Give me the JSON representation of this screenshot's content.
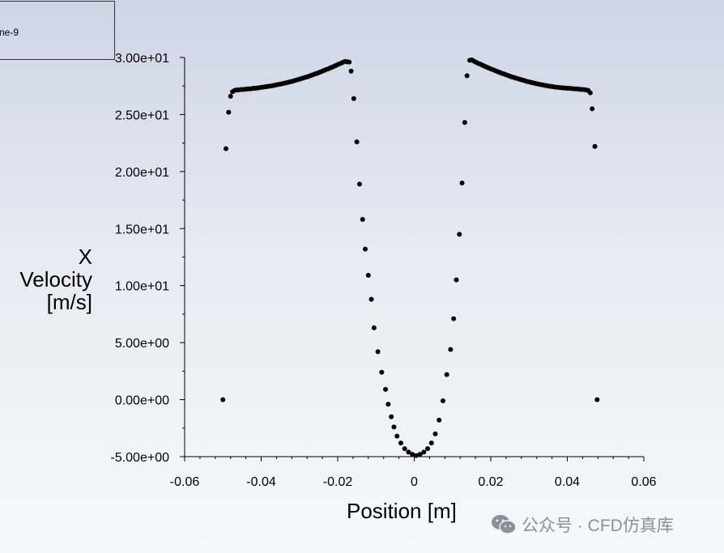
{
  "legend": {
    "text": "ne-9"
  },
  "watermark": {
    "text": "公众号 · CFD仿真库",
    "icon": "wechat-icon",
    "color": "#8a8f99"
  },
  "chart_data": {
    "type": "scatter",
    "title": "",
    "xlabel": "Position [m]",
    "ylabel_lines": [
      "X",
      "Velocity",
      "[m/s]"
    ],
    "xlim": [
      -0.06,
      0.06
    ],
    "ylim": [
      -5,
      30
    ],
    "x_ticks": [
      -0.06,
      -0.04,
      -0.02,
      0,
      0.02,
      0.04,
      0.06
    ],
    "x_tick_labels": [
      "-0.06",
      "-0.04",
      "-0.02",
      "0",
      "0.02",
      "0.04",
      "0.06"
    ],
    "y_ticks": [
      -5,
      0,
      5,
      10,
      15,
      20,
      25,
      30
    ],
    "y_tick_labels": [
      "-5.00e+00",
      "0.00e+00",
      "5.00e+00",
      "1.00e+01",
      "1.50e+01",
      "2.00e+01",
      "2.50e+01",
      "3.00e+01"
    ],
    "grid": false,
    "marker_color": "#000000",
    "series": [
      {
        "points": [
          [
            -0.05,
            0.0
          ],
          [
            -0.0492,
            22.0
          ],
          [
            -0.0485,
            25.2
          ],
          [
            -0.048,
            26.6
          ],
          [
            -0.0475,
            27.0
          ],
          [
            -0.047,
            27.1
          ],
          [
            -0.0465,
            27.15
          ],
          [
            -0.046,
            27.15
          ],
          [
            -0.0455,
            27.18
          ],
          [
            -0.045,
            27.2
          ],
          [
            -0.0445,
            27.2
          ],
          [
            -0.044,
            27.22
          ],
          [
            -0.0435,
            27.25
          ],
          [
            -0.043,
            27.25
          ],
          [
            -0.0425,
            27.27
          ],
          [
            -0.042,
            27.3
          ],
          [
            -0.0415,
            27.3
          ],
          [
            -0.041,
            27.33
          ],
          [
            -0.0405,
            27.35
          ],
          [
            -0.04,
            27.38
          ],
          [
            -0.0395,
            27.4
          ],
          [
            -0.039,
            27.43
          ],
          [
            -0.0385,
            27.45
          ],
          [
            -0.038,
            27.48
          ],
          [
            -0.0375,
            27.5
          ],
          [
            -0.037,
            27.53
          ],
          [
            -0.0365,
            27.56
          ],
          [
            -0.036,
            27.6
          ],
          [
            -0.0355,
            27.63
          ],
          [
            -0.035,
            27.67
          ],
          [
            -0.0345,
            27.7
          ],
          [
            -0.034,
            27.74
          ],
          [
            -0.0335,
            27.78
          ],
          [
            -0.033,
            27.82
          ],
          [
            -0.0325,
            27.86
          ],
          [
            -0.032,
            27.9
          ],
          [
            -0.0315,
            27.95
          ],
          [
            -0.031,
            28.0
          ],
          [
            -0.0305,
            28.05
          ],
          [
            -0.03,
            28.1
          ],
          [
            -0.0295,
            28.15
          ],
          [
            -0.029,
            28.2
          ],
          [
            -0.0285,
            28.25
          ],
          [
            -0.028,
            28.3
          ],
          [
            -0.0275,
            28.36
          ],
          [
            -0.027,
            28.42
          ],
          [
            -0.0265,
            28.48
          ],
          [
            -0.026,
            28.55
          ],
          [
            -0.0255,
            28.6
          ],
          [
            -0.025,
            28.67
          ],
          [
            -0.0245,
            28.73
          ],
          [
            -0.024,
            28.8
          ],
          [
            -0.0235,
            28.87
          ],
          [
            -0.023,
            28.94
          ],
          [
            -0.0225,
            29.0
          ],
          [
            -0.022,
            29.08
          ],
          [
            -0.0215,
            29.15
          ],
          [
            -0.021,
            29.22
          ],
          [
            -0.0205,
            29.3
          ],
          [
            -0.02,
            29.38
          ],
          [
            -0.0195,
            29.45
          ],
          [
            -0.019,
            29.52
          ],
          [
            -0.0185,
            29.6
          ],
          [
            -0.018,
            29.65
          ],
          [
            -0.0175,
            29.62
          ],
          [
            -0.017,
            29.6
          ],
          [
            -0.0165,
            28.8
          ],
          [
            -0.0158,
            26.4
          ],
          [
            -0.015,
            22.6
          ],
          [
            -0.0143,
            18.9
          ],
          [
            -0.0135,
            15.8
          ],
          [
            -0.0128,
            13.2
          ],
          [
            -0.012,
            10.9
          ],
          [
            -0.0112,
            8.8
          ],
          [
            -0.0105,
            6.3
          ],
          [
            -0.0095,
            4.2
          ],
          [
            -0.0085,
            2.4
          ],
          [
            -0.0075,
            0.9
          ],
          [
            -0.0068,
            -0.4
          ],
          [
            -0.006,
            -1.5
          ],
          [
            -0.0053,
            -2.4
          ],
          [
            -0.0045,
            -3.2
          ],
          [
            -0.0035,
            -3.8
          ],
          [
            -0.0025,
            -4.3
          ],
          [
            -0.0015,
            -4.6
          ],
          [
            -0.0005,
            -4.8
          ],
          [
            0.0005,
            -4.9
          ],
          [
            0.0015,
            -4.8
          ],
          [
            0.0025,
            -4.6
          ],
          [
            0.0035,
            -4.3
          ],
          [
            0.0045,
            -3.8
          ],
          [
            0.0055,
            -3.0
          ],
          [
            0.0065,
            -1.8
          ],
          [
            0.0075,
            -0.1
          ],
          [
            0.0085,
            2.2
          ],
          [
            0.0095,
            4.4
          ],
          [
            0.0103,
            7.1
          ],
          [
            0.011,
            10.5
          ],
          [
            0.0118,
            14.5
          ],
          [
            0.0125,
            19.0
          ],
          [
            0.0132,
            24.3
          ],
          [
            0.0138,
            28.4
          ],
          [
            0.0145,
            29.75
          ],
          [
            0.015,
            29.8
          ],
          [
            0.0155,
            29.7
          ],
          [
            0.016,
            29.6
          ],
          [
            0.0165,
            29.52
          ],
          [
            0.017,
            29.45
          ],
          [
            0.0175,
            29.38
          ],
          [
            0.018,
            29.3
          ],
          [
            0.0185,
            29.22
          ],
          [
            0.019,
            29.15
          ],
          [
            0.0195,
            29.08
          ],
          [
            0.02,
            29.0
          ],
          [
            0.0205,
            28.94
          ],
          [
            0.021,
            28.87
          ],
          [
            0.0215,
            28.8
          ],
          [
            0.022,
            28.73
          ],
          [
            0.0225,
            28.67
          ],
          [
            0.023,
            28.6
          ],
          [
            0.0235,
            28.55
          ],
          [
            0.024,
            28.48
          ],
          [
            0.0245,
            28.42
          ],
          [
            0.025,
            28.36
          ],
          [
            0.0255,
            28.3
          ],
          [
            0.026,
            28.25
          ],
          [
            0.0265,
            28.2
          ],
          [
            0.027,
            28.15
          ],
          [
            0.0275,
            28.1
          ],
          [
            0.028,
            28.05
          ],
          [
            0.0285,
            28.0
          ],
          [
            0.029,
            27.95
          ],
          [
            0.0295,
            27.9
          ],
          [
            0.03,
            27.86
          ],
          [
            0.0305,
            27.82
          ],
          [
            0.031,
            27.78
          ],
          [
            0.0315,
            27.74
          ],
          [
            0.032,
            27.7
          ],
          [
            0.0325,
            27.67
          ],
          [
            0.033,
            27.63
          ],
          [
            0.0335,
            27.6
          ],
          [
            0.034,
            27.56
          ],
          [
            0.0345,
            27.53
          ],
          [
            0.035,
            27.5
          ],
          [
            0.0355,
            27.48
          ],
          [
            0.036,
            27.45
          ],
          [
            0.0365,
            27.43
          ],
          [
            0.037,
            27.4
          ],
          [
            0.0375,
            27.38
          ],
          [
            0.038,
            27.36
          ],
          [
            0.0385,
            27.35
          ],
          [
            0.039,
            27.33
          ],
          [
            0.0395,
            27.32
          ],
          [
            0.04,
            27.3
          ],
          [
            0.0405,
            27.3
          ],
          [
            0.041,
            27.28
          ],
          [
            0.0415,
            27.27
          ],
          [
            0.042,
            27.25
          ],
          [
            0.0425,
            27.25
          ],
          [
            0.043,
            27.22
          ],
          [
            0.0435,
            27.2
          ],
          [
            0.044,
            27.2
          ],
          [
            0.0445,
            27.18
          ],
          [
            0.045,
            27.15
          ],
          [
            0.0455,
            27.1
          ],
          [
            0.046,
            26.9
          ],
          [
            0.0465,
            25.5
          ],
          [
            0.0472,
            22.2
          ],
          [
            0.0478,
            0.0
          ]
        ]
      }
    ]
  }
}
